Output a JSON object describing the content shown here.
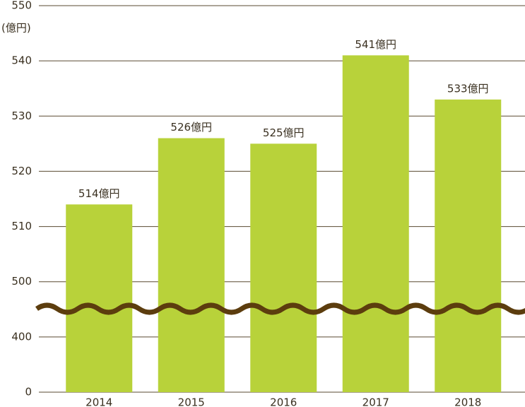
{
  "chart_data": {
    "type": "bar",
    "y_unit": "(億円)",
    "categories": [
      "2014",
      "2015",
      "2016",
      "2017",
      "2018"
    ],
    "values": [
      514,
      526,
      525,
      541,
      533
    ],
    "value_labels": [
      "514億円",
      "526億円",
      "525億円",
      "541億円",
      "533億円"
    ],
    "color": "#b8d23a",
    "ylim": [
      0,
      550
    ],
    "yticks": [
      0,
      400,
      500,
      510,
      520,
      530,
      540,
      550
    ],
    "grid": true,
    "axis_break": true
  }
}
